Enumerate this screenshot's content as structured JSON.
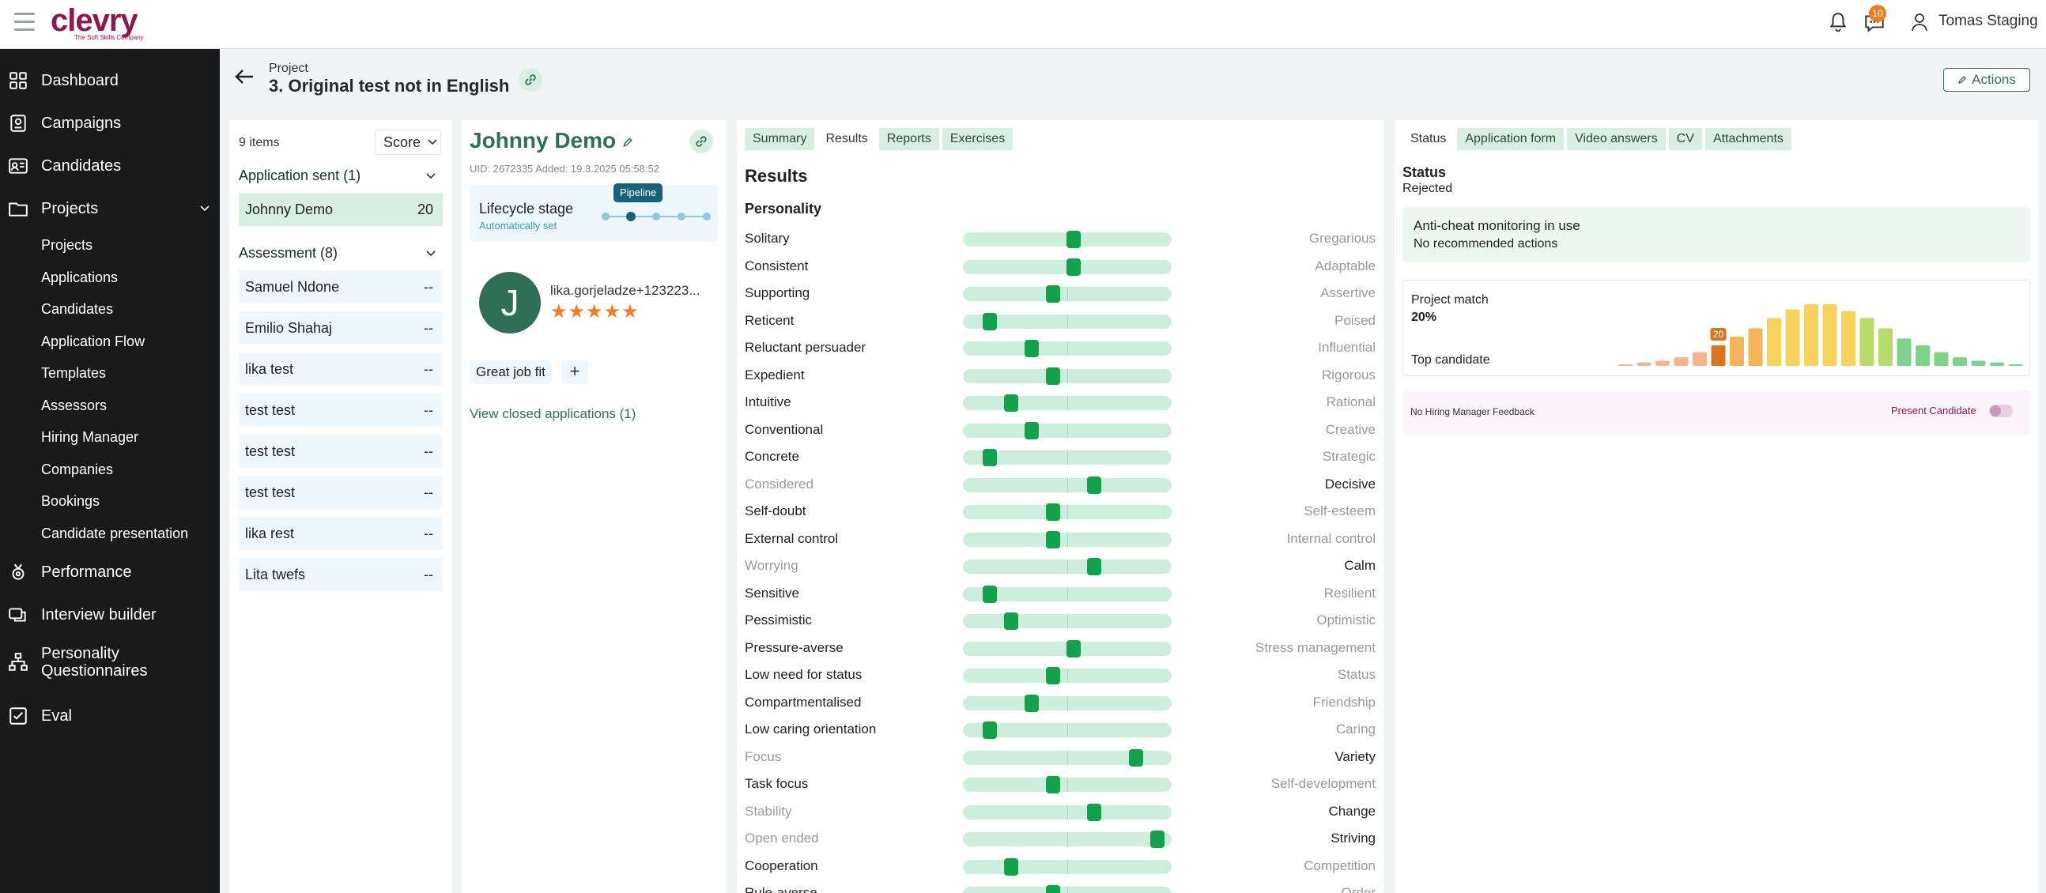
{
  "app": {
    "logo_text": "clevry",
    "logo_tagline": "The Soft Skills Company",
    "notifications_count": "10",
    "user_name": "Tomas Staging"
  },
  "sidebar": {
    "items": [
      {
        "label": "Dashboard",
        "icon": "grid-icon"
      },
      {
        "label": "Campaigns",
        "icon": "campaign-icon"
      },
      {
        "label": "Candidates",
        "icon": "id-card-icon"
      },
      {
        "label": "Projects",
        "icon": "folder-icon"
      }
    ],
    "sub_items": [
      "Projects",
      "Applications",
      "Candidates",
      "Application Flow",
      "Templates",
      "Assessors",
      "Hiring Manager",
      "Companies",
      "Bookings",
      "Candidate presentation"
    ],
    "bottom_items": [
      {
        "label": "Performance",
        "icon": "performance-icon"
      },
      {
        "label": "Interview builder",
        "icon": "interview-icon"
      },
      {
        "label": "Personality Questionnaires",
        "icon": "hierarchy-icon"
      },
      {
        "label": "Eval",
        "icon": "eval-icon"
      }
    ]
  },
  "header": {
    "project_label": "Project",
    "project_title": "3. Original test not in English",
    "actions_label": "Actions"
  },
  "list": {
    "items_count": "9 items",
    "sort_label": "Score",
    "groups": [
      {
        "title": "Application sent (1)",
        "rows": [
          {
            "name": "Johnny Demo",
            "score": "20",
            "active": true
          }
        ]
      },
      {
        "title": "Assessment (8)",
        "rows": [
          {
            "name": "Samuel Ndone",
            "score": "--"
          },
          {
            "name": "Emilio Shahaj",
            "score": "--"
          },
          {
            "name": "lika test",
            "score": "--"
          },
          {
            "name": "test test",
            "score": "--"
          },
          {
            "name": "test test",
            "score": "--"
          },
          {
            "name": "test test",
            "score": "--"
          },
          {
            "name": "lika rest",
            "score": "--"
          },
          {
            "name": "Lita twefs",
            "score": "--"
          }
        ]
      }
    ]
  },
  "candidate": {
    "name": "Johnny Demo",
    "meta": "UID: 2672335 Added: 19.3.2025 05:58:52",
    "lifecycle_title": "Lifecycle stage",
    "lifecycle_sub": "Automatically set",
    "pipeline_label": "Pipeline",
    "avatar_letter": "J",
    "email": "lika.gorjeladze+123223...",
    "rating": 5,
    "tag": "Great job fit",
    "closed_link": "View closed applications (1)"
  },
  "results": {
    "tabs": [
      "Summary",
      "Results",
      "Reports",
      "Exercises"
    ],
    "active_tab": "Results",
    "title": "Results",
    "section": "Personality",
    "traits": [
      {
        "left": "Solitary",
        "right": "Gregarious",
        "score": 0.53,
        "strong": "left"
      },
      {
        "left": "Consistent",
        "right": "Adaptable",
        "score": 0.53,
        "strong": "left"
      },
      {
        "left": "Supporting",
        "right": "Assertive",
        "score": 0.43,
        "strong": "left"
      },
      {
        "left": "Reticent",
        "right": "Poised",
        "score": 0.13,
        "strong": "left"
      },
      {
        "left": "Reluctant persuader",
        "right": "Influential",
        "score": 0.33,
        "strong": "left"
      },
      {
        "left": "Expedient",
        "right": "Rigorous",
        "score": 0.43,
        "strong": "left"
      },
      {
        "left": "Intuitive",
        "right": "Rational",
        "score": 0.23,
        "strong": "left"
      },
      {
        "left": "Conventional",
        "right": "Creative",
        "score": 0.33,
        "strong": "left"
      },
      {
        "left": "Concrete",
        "right": "Strategic",
        "score": 0.13,
        "strong": "left"
      },
      {
        "left": "Considered",
        "right": "Decisive",
        "score": 0.63,
        "strong": "right"
      },
      {
        "left": "Self-doubt",
        "right": "Self-esteem",
        "score": 0.43,
        "strong": "left"
      },
      {
        "left": "External control",
        "right": "Internal control",
        "score": 0.43,
        "strong": "left"
      },
      {
        "left": "Worrying",
        "right": "Calm",
        "score": 0.63,
        "strong": "right"
      },
      {
        "left": "Sensitive",
        "right": "Resilient",
        "score": 0.13,
        "strong": "left"
      },
      {
        "left": "Pessimistic",
        "right": "Optimistic",
        "score": 0.23,
        "strong": "left"
      },
      {
        "left": "Pressure-averse",
        "right": "Stress management",
        "score": 0.53,
        "strong": "left"
      },
      {
        "left": "Low need for status",
        "right": "Status",
        "score": 0.43,
        "strong": "left"
      },
      {
        "left": "Compartmentalised",
        "right": "Friendship",
        "score": 0.33,
        "strong": "left"
      },
      {
        "left": "Low caring orientation",
        "right": "Caring",
        "score": 0.13,
        "strong": "left"
      },
      {
        "left": "Focus",
        "right": "Variety",
        "score": 0.83,
        "strong": "right"
      },
      {
        "left": "Task focus",
        "right": "Self-development",
        "score": 0.43,
        "strong": "left"
      },
      {
        "left": "Stability",
        "right": "Change",
        "score": 0.63,
        "strong": "right"
      },
      {
        "left": "Open ended",
        "right": "Striving",
        "score": 0.93,
        "strong": "right"
      },
      {
        "left": "Cooperation",
        "right": "Competition",
        "score": 0.23,
        "strong": "left"
      },
      {
        "left": "Rule-averse",
        "right": "Order",
        "score": 0.43,
        "strong": "left"
      }
    ]
  },
  "status": {
    "tabs": [
      "Status",
      "Application form",
      "Video answers",
      "CV",
      "Attachments"
    ],
    "active_tab": "Status",
    "status_label": "Status",
    "status_value": "Rejected",
    "anticheat_title": "Anti-cheat monitoring in use",
    "anticheat_sub": "No recommended actions",
    "match_title": "Project match",
    "match_value": "20%",
    "top_label": "Top candidate",
    "hist_marker": "20",
    "histogram": [
      1,
      2,
      3,
      5,
      8,
      12,
      17,
      22,
      28,
      33,
      36,
      36,
      32,
      28,
      22,
      16,
      12,
      8,
      5,
      3,
      2,
      1
    ],
    "highlight_index": 5,
    "feedback_text": "No Hiring Manager Feedback",
    "present_label": "Present Candidate",
    "colors": {
      "accent": "#2f6e57",
      "brand": "#8e1750",
      "knob": "#12a24b",
      "track": "#cdeedc"
    }
  }
}
